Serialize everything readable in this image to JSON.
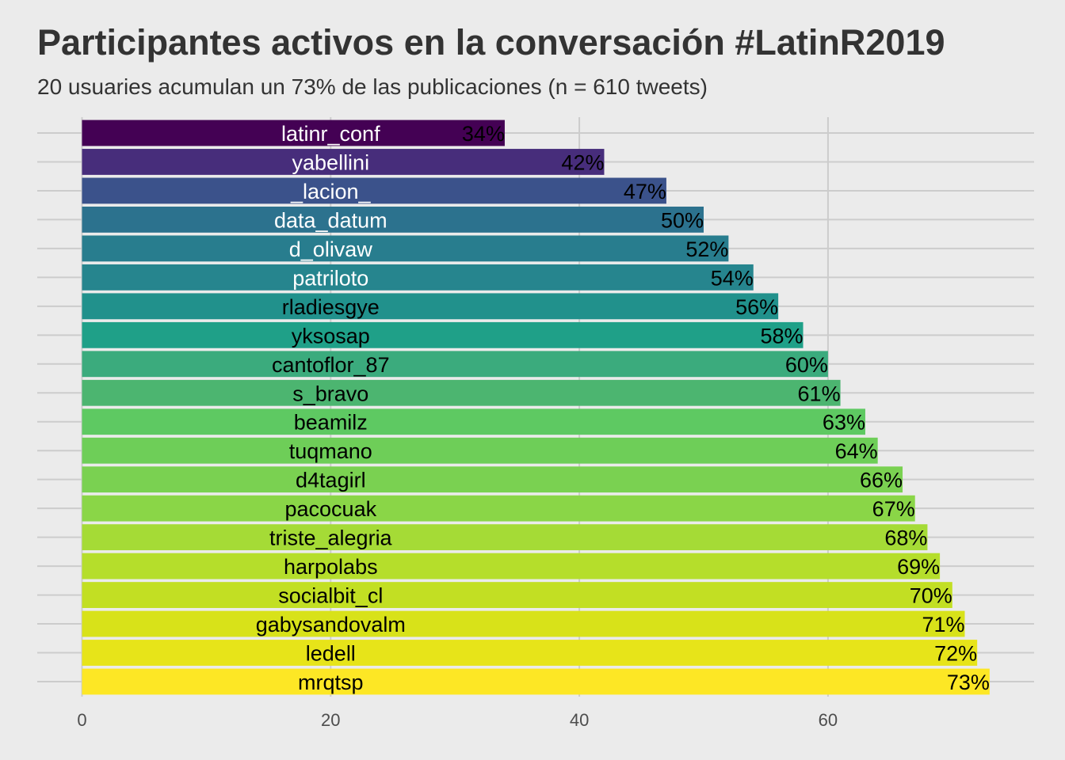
{
  "chart_data": {
    "type": "bar",
    "orientation": "horizontal",
    "title": "Participantes activos en la conversación #LatinR2019",
    "subtitle": "20 usuaries acumulan un 73% de las publicaciones (n = 610 tweets)",
    "xlabel": "",
    "ylabel": "",
    "xlim": [
      0,
      76
    ],
    "x_ticks": [
      "0",
      "20",
      "40",
      "60"
    ],
    "x_tick_values": [
      0,
      20,
      40,
      60
    ],
    "grid": true,
    "legend": "none",
    "colormap": "viridis",
    "categories": [
      "latinr_conf",
      "yabellini",
      "_lacion_",
      "data_datum",
      "d_olivaw",
      "patriloto",
      "rladiesgye",
      "yksosap",
      "cantoflor_87",
      "s_bravo",
      "beamilz",
      "tuqmano",
      "d4tagirl",
      "pacocuak",
      "triste_alegria",
      "harpolabs",
      "socialbit_cl",
      "gabysandovalm",
      "ledell",
      "mrqtsp"
    ],
    "values": [
      34,
      42,
      47,
      50,
      52,
      54,
      56,
      58,
      60,
      61,
      63,
      64,
      66,
      67,
      68,
      69,
      70,
      71,
      72,
      73
    ],
    "value_labels": [
      "34%",
      "42%",
      "47%",
      "50%",
      "52%",
      "54%",
      "56%",
      "58%",
      "60%",
      "61%",
      "63%",
      "64%",
      "66%",
      "67%",
      "68%",
      "69%",
      "70%",
      "71%",
      "72%",
      "73%"
    ],
    "colors": [
      "#440154",
      "#472d7b",
      "#3b528b",
      "#2c728e",
      "#287d8e",
      "#26858e",
      "#21918c",
      "#1fa088",
      "#3bab7d",
      "#4cb570",
      "#5ec962",
      "#6ece58",
      "#7ad151",
      "#8ad647",
      "#a5db36",
      "#b5de2b",
      "#c2df23",
      "#d8e219",
      "#e7e419",
      "#fde725"
    ],
    "label_colors": [
      "#ffffff",
      "#ffffff",
      "#ffffff",
      "#ffffff",
      "#ffffff",
      "#ffffff",
      "#000000",
      "#000000",
      "#000000",
      "#000000",
      "#000000",
      "#000000",
      "#000000",
      "#000000",
      "#000000",
      "#000000",
      "#000000",
      "#000000",
      "#000000",
      "#000000"
    ]
  }
}
